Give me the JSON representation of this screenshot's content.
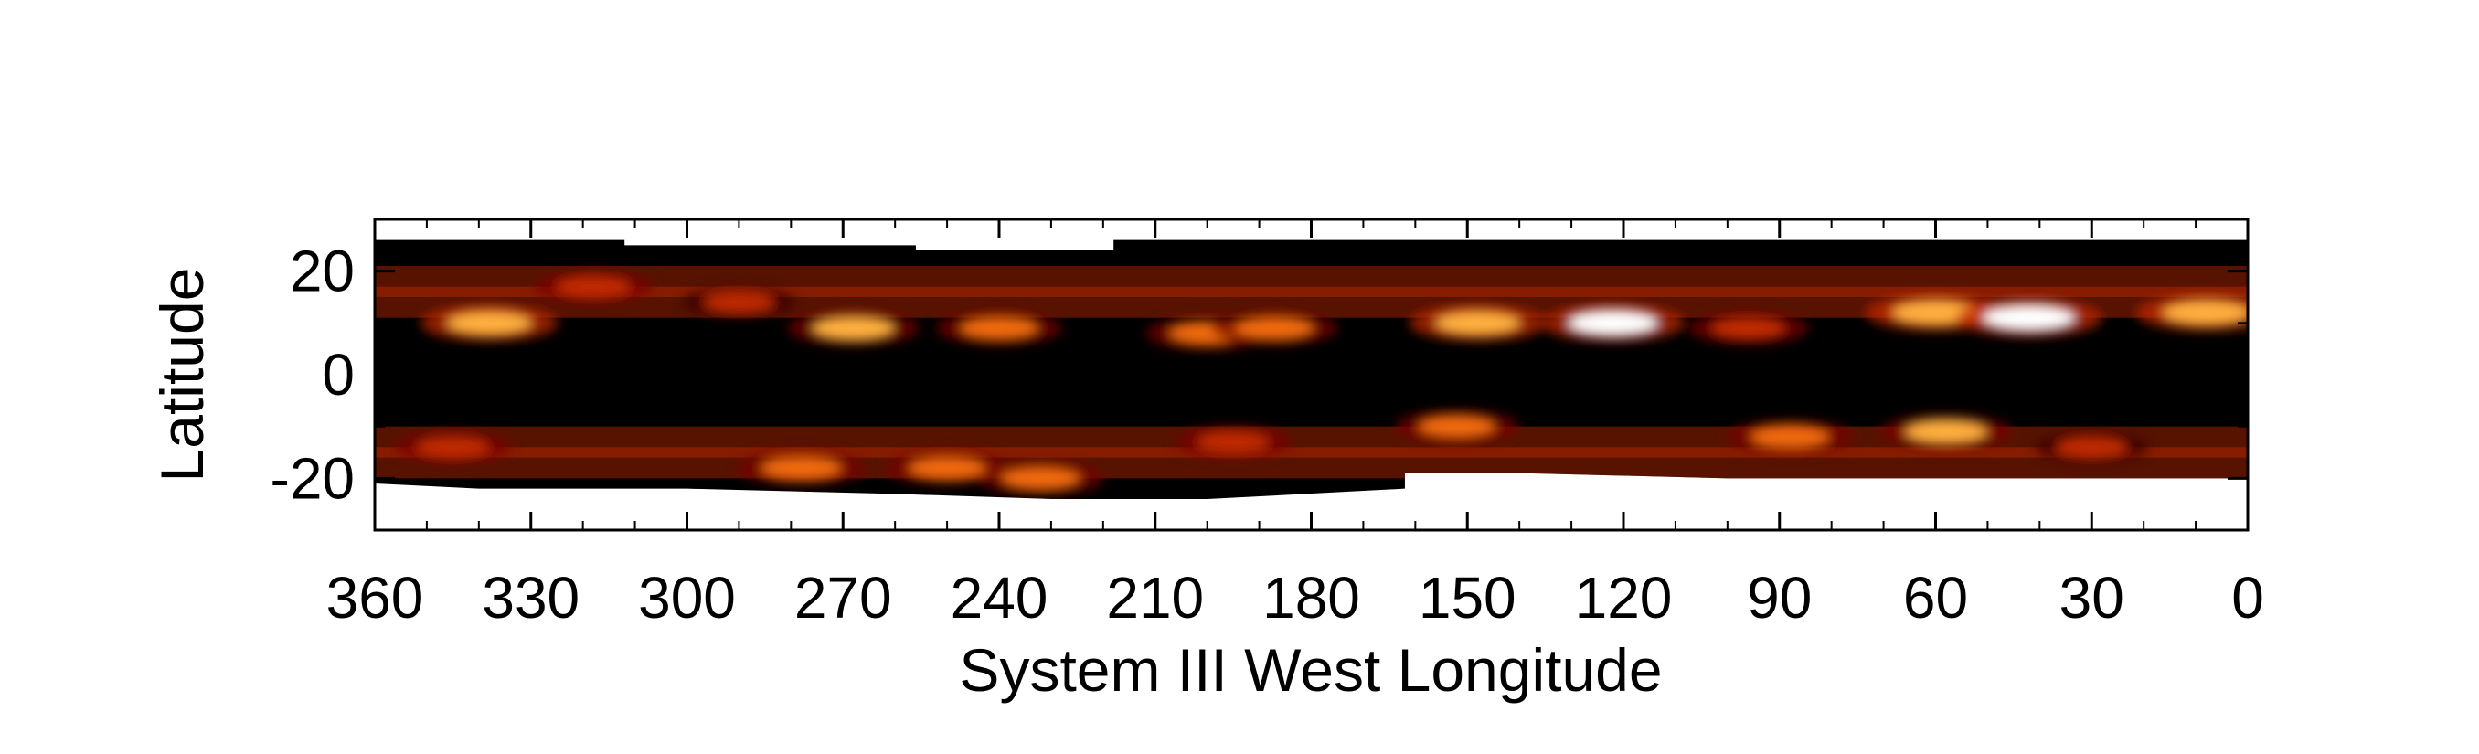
{
  "chart_data": {
    "type": "heatmap",
    "title": "",
    "xlabel": "System III West Longitude",
    "ylabel": "Latitude",
    "xlim": [
      360,
      0
    ],
    "ylim": [
      -30,
      30
    ],
    "x_ticks": [
      360,
      330,
      300,
      270,
      240,
      210,
      180,
      150,
      120,
      90,
      60,
      30,
      0
    ],
    "y_ticks": [
      20,
      0,
      -20
    ],
    "x_tick_labels": [
      "360",
      "330",
      "300",
      "270",
      "240",
      "210",
      "180",
      "150",
      "120",
      "90",
      "60",
      "30",
      "0"
    ],
    "y_tick_labels": [
      "20",
      "0",
      "-20"
    ],
    "colormap": [
      "#000000",
      "#3a0000",
      "#7a0800",
      "#c02a00",
      "#f06a08",
      "#ffb040",
      "#ffffff"
    ],
    "grid": false,
    "coverage": {
      "north_edge": [
        [
          360,
          26
        ],
        [
          312,
          26
        ],
        [
          312,
          25
        ],
        [
          256,
          25
        ],
        [
          256,
          24
        ],
        [
          218,
          24
        ],
        [
          218,
          26
        ],
        [
          0,
          26
        ]
      ],
      "south_edge": [
        [
          360,
          -21
        ],
        [
          340,
          -22
        ],
        [
          300,
          -22
        ],
        [
          260,
          -23
        ],
        [
          230,
          -24
        ],
        [
          200,
          -24
        ],
        [
          162,
          -22
        ],
        [
          162,
          -19
        ],
        [
          140,
          -19
        ],
        [
          100,
          -20
        ],
        [
          60,
          -20
        ],
        [
          20,
          -20
        ],
        [
          0,
          -20
        ]
      ]
    },
    "emission_features": [
      {
        "lon": 338,
        "lat": 10,
        "intensity": 0.85
      },
      {
        "lon": 318,
        "lat": 17,
        "intensity": 0.55
      },
      {
        "lon": 290,
        "lat": 14,
        "intensity": 0.45
      },
      {
        "lon": 268,
        "lat": 9,
        "intensity": 0.75
      },
      {
        "lon": 240,
        "lat": 9,
        "intensity": 0.65
      },
      {
        "lon": 200,
        "lat": 8,
        "intensity": 0.6
      },
      {
        "lon": 187,
        "lat": 9,
        "intensity": 0.65
      },
      {
        "lon": 148,
        "lat": 10,
        "intensity": 0.85
      },
      {
        "lon": 122,
        "lat": 10,
        "intensity": 0.95
      },
      {
        "lon": 96,
        "lat": 9,
        "intensity": 0.55
      },
      {
        "lon": 60,
        "lat": 12,
        "intensity": 0.9
      },
      {
        "lon": 42,
        "lat": 11,
        "intensity": 1.0
      },
      {
        "lon": 8,
        "lat": 12,
        "intensity": 0.9
      },
      {
        "lon": 345,
        "lat": -14,
        "intensity": 0.5
      },
      {
        "lon": 278,
        "lat": -18,
        "intensity": 0.7
      },
      {
        "lon": 250,
        "lat": -18,
        "intensity": 0.6
      },
      {
        "lon": 232,
        "lat": -20,
        "intensity": 0.65
      },
      {
        "lon": 195,
        "lat": -13,
        "intensity": 0.5
      },
      {
        "lon": 152,
        "lat": -10,
        "intensity": 0.6
      },
      {
        "lon": 88,
        "lat": -12,
        "intensity": 0.65
      },
      {
        "lon": 58,
        "lat": -11,
        "intensity": 0.75
      },
      {
        "lon": 30,
        "lat": -14,
        "intensity": 0.45
      }
    ]
  }
}
